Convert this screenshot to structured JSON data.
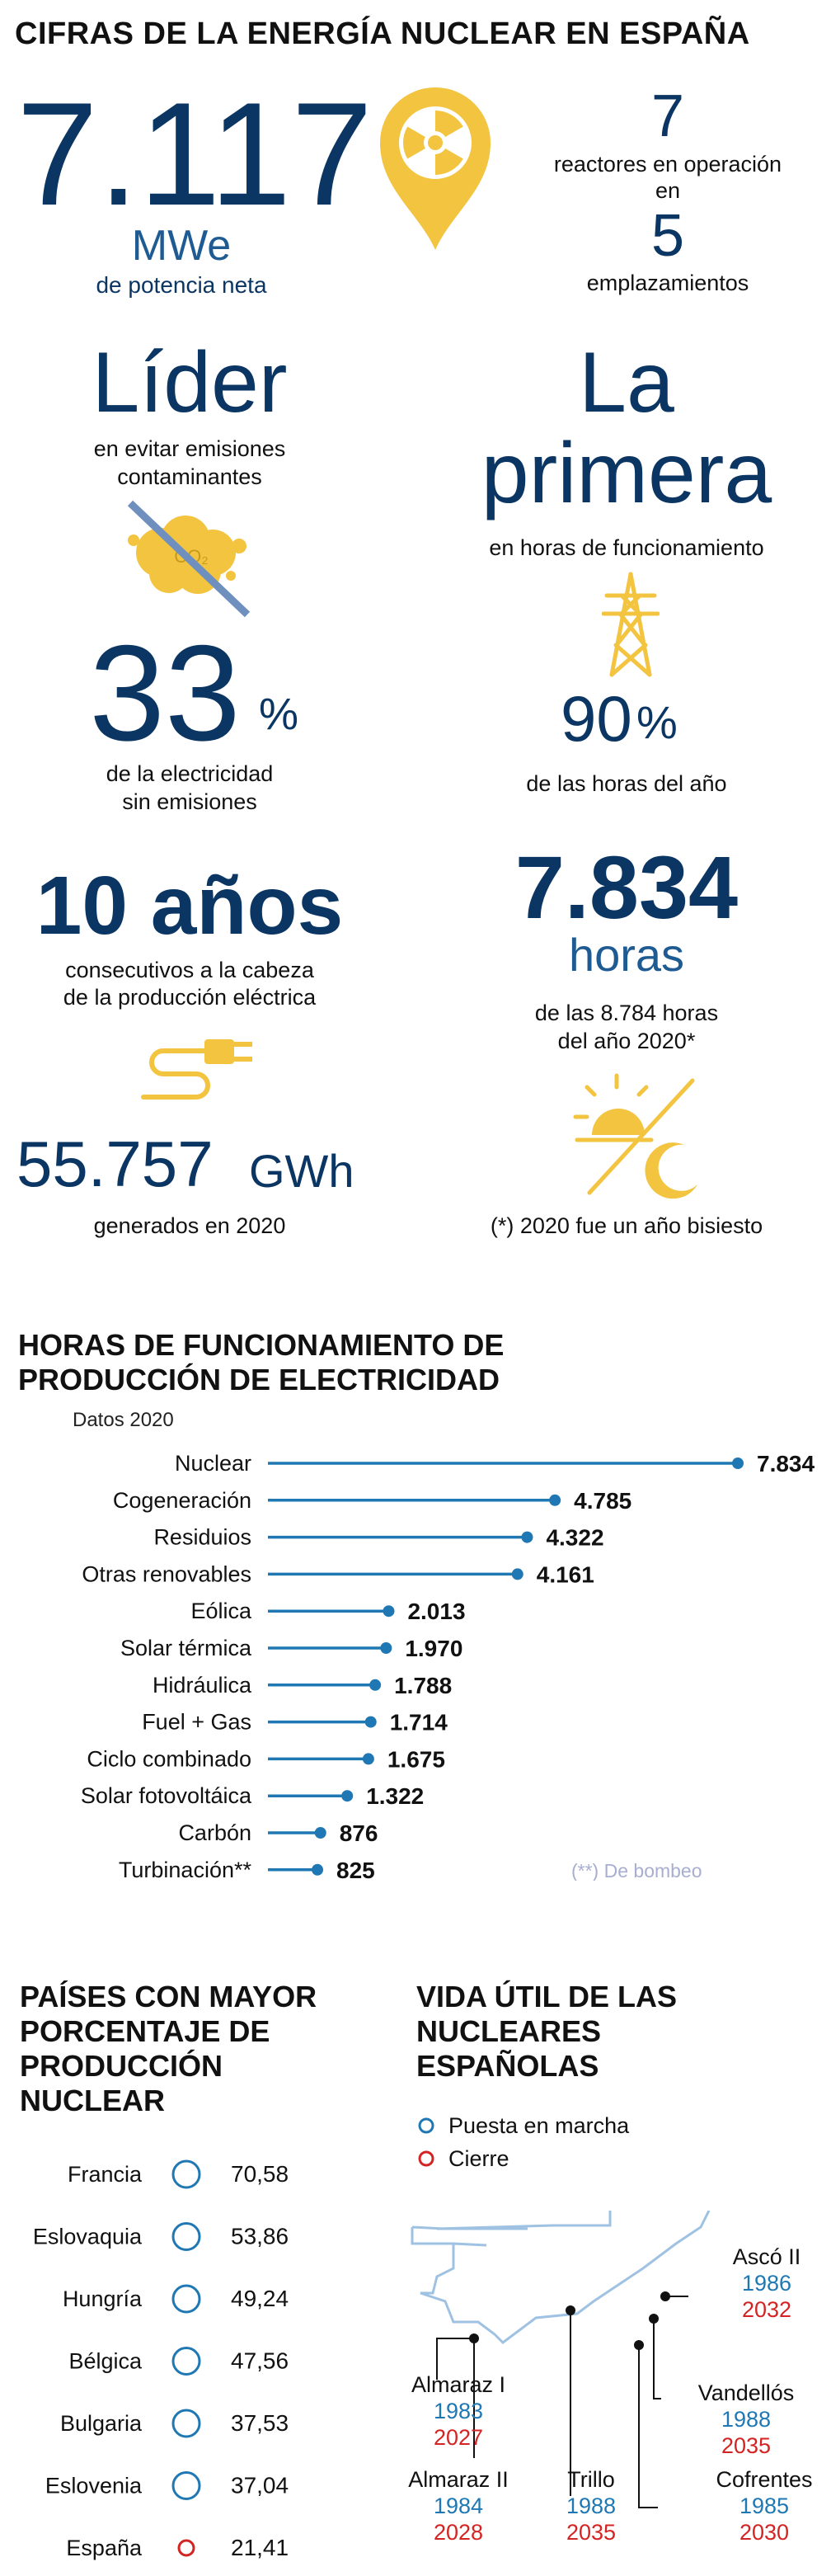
{
  "header": {
    "title": "CIFRAS DE LA ENERGÍA NUCLEAR EN ESPAÑA"
  },
  "stats": {
    "power_value": "7.117",
    "power_unit": "MWe",
    "power_caption": "de potencia neta",
    "reactors_value": "7",
    "reactors_caption": "reactores en operación",
    "reactors_connector": "en",
    "sites_value": "5",
    "sites_caption": "emplazamientos",
    "leader_title": "Líder",
    "leader_caption_1": "en evitar emisiones",
    "leader_caption_2": "contaminantes",
    "co2_label": "CO₂",
    "clean_value": "33",
    "clean_unit": "%",
    "clean_caption_1": "de la electricidad",
    "clean_caption_2": "sin emisiones",
    "first_title_1": "La",
    "first_title_2": "primera",
    "first_caption": "en horas de funcionamiento",
    "hours_pct_value": "90",
    "hours_pct_unit": "%",
    "hours_pct_caption": "de las horas del año",
    "years_title": "10 años",
    "years_caption_1": "consecutivos a la cabeza",
    "years_caption_2": "de la producción eléctrica",
    "gen_value": "55.757",
    "gen_unit": "GWh",
    "gen_caption": "generados en 2020",
    "hours_value": "7.834",
    "hours_unit": "horas",
    "hours_caption_1": "de las 8.784 horas",
    "hours_caption_2": "del año 2020*",
    "leap_note": "(*) 2020 fue un año bisiesto"
  },
  "chart_data": [
    {
      "type": "lollipop",
      "title": "HORAS DE FUNCIONAMIENTO DE PRODUCCIÓN DE ELECTRICIDAD",
      "subtitle": "Datos 2020",
      "categories": [
        "Nuclear",
        "Cogeneración",
        "Residuios",
        "Otras renovables",
        "Eólica",
        "Solar térmica",
        "Hidráulica",
        "Fuel + Gas",
        "Ciclo combinado",
        "Solar fotovoltáica",
        "Carbón",
        "Turbinación**"
      ],
      "values": [
        7834,
        4785,
        4322,
        4161,
        2013,
        1970,
        1788,
        1714,
        1675,
        1322,
        876,
        825
      ],
      "value_labels": [
        "7.834",
        "4.785",
        "4.322",
        "4.161",
        "2.013",
        "1.970",
        "1.788",
        "1.714",
        "1.675",
        "1.322",
        "876",
        "825"
      ],
      "note": "(**) De bombeo",
      "color": "#1f78b4"
    },
    {
      "type": "table",
      "title": "PAÍSES CON MAYOR PORCENTAJE DE PRODUCCIÓN NUCLEAR",
      "countries": [
        "Francia",
        "Eslovaquia",
        "Hungría",
        "Bélgica",
        "Bulgaria",
        "Eslovenia",
        "España"
      ],
      "values": [
        "70,58",
        "53,86",
        "49,24",
        "47,56",
        "37,53",
        "37,04",
        "21,41"
      ],
      "highlight": "España",
      "circle_color": "#1f78b4",
      "highlight_color": "#d42323"
    },
    {
      "type": "timeline",
      "title": "VIDA ÚTIL DE LAS NUCLEARES ESPAÑOLAS",
      "legend": {
        "start": "Puesta en marcha",
        "end": "Cierre"
      },
      "plants": [
        {
          "name": "Almaraz I",
          "start": "1983",
          "end": "2027"
        },
        {
          "name": "Almaraz II",
          "start": "1984",
          "end": "2028"
        },
        {
          "name": "Trillo",
          "start": "1988",
          "end": "2035"
        },
        {
          "name": "Cofrentes",
          "start": "1985",
          "end": "2030"
        },
        {
          "name": "Vandellós",
          "start": "1988",
          "end": "2035"
        },
        {
          "name": "Ascó II",
          "start": "1986",
          "end": "2032"
        }
      ],
      "start_color": "#1f78b4",
      "end_color": "#d42323"
    }
  ],
  "icons": {
    "nuclear": "radiation-pin-icon",
    "co2": "crossed-co2-cloud-icon",
    "tower": "power-tower-icon",
    "plug": "plug-icon",
    "daynight": "sun-moon-icon"
  },
  "colors": {
    "navy": "#0b3663",
    "blue": "#1f78b4",
    "yellow": "#f3c43f",
    "red": "#d42323"
  }
}
